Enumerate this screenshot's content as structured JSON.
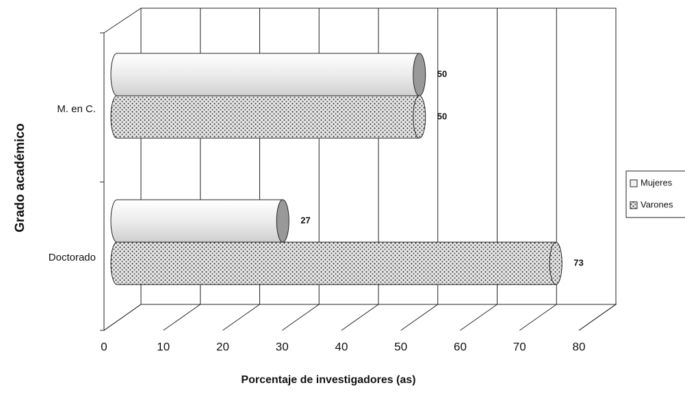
{
  "chart_data": {
    "type": "bar",
    "orientation": "horizontal",
    "x_label": "Porcentaje de investigadores (as)",
    "y_label": "Grado académico",
    "categories": [
      "M. en C.",
      "Doctorado"
    ],
    "series": [
      {
        "name": "Mujeres",
        "color": "#f2f2f2",
        "values": [
          50,
          27
        ]
      },
      {
        "name": "Varones",
        "color": "#9a9a9a",
        "values": [
          50,
          73
        ]
      }
    ],
    "xlim": [
      0,
      80
    ],
    "xticks": [
      0,
      10,
      20,
      30,
      40,
      50,
      60,
      70,
      80
    ],
    "grid": true,
    "legend": "right"
  }
}
